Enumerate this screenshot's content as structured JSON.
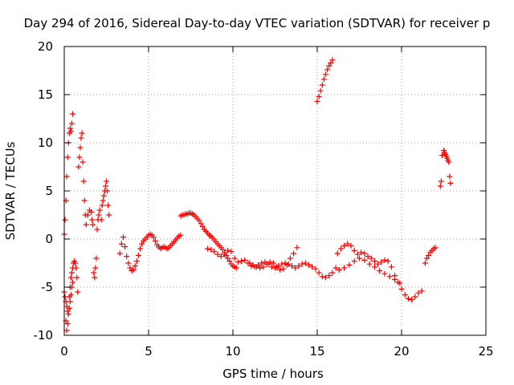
{
  "chart_data": {
    "type": "scatter",
    "title": "Day 294 of 2016, Sidereal Day-to-day VTEC variation (SDTVAR) for receiver p",
    "xlabel": "GPS time / hours",
    "ylabel": "SDTVAR / TECUs",
    "xlim": [
      0,
      25
    ],
    "ylim": [
      -10,
      20
    ],
    "xticks": [
      0,
      5,
      10,
      15,
      20,
      25
    ],
    "yticks": [
      -10,
      -5,
      0,
      5,
      10,
      15,
      20
    ],
    "grid": true,
    "marker": "+",
    "color": "#ff0000",
    "series": [
      {
        "x": [
          0.0,
          0.05,
          0.1,
          0.15,
          0.2,
          0.25,
          0.3,
          0.35,
          0.4,
          0.45,
          0.5,
          0.0,
          0.05,
          0.1,
          0.15,
          0.2,
          0.25,
          0.3,
          0.35,
          0.4,
          0.45,
          0.5,
          0.1,
          0.15,
          0.2,
          0.3,
          0.35,
          0.4,
          0.45,
          0.5,
          0.55,
          0.6,
          0.65,
          0.7,
          0.75,
          0.8,
          0.85,
          0.9,
          0.95,
          1.0,
          1.05,
          1.1,
          1.15,
          1.2,
          1.25,
          1.3,
          1.4,
          1.5,
          1.6,
          1.65,
          1.7,
          1.75,
          1.8,
          1.85,
          1.9,
          1.95,
          2.0,
          2.05,
          2.1,
          2.2,
          2.25,
          2.3,
          2.35,
          2.4,
          2.45,
          2.5,
          2.55,
          2.6,
          2.65
        ],
        "y": [
          -5.5,
          -6.0,
          -6.5,
          -7.0,
          -7.5,
          -7.8,
          -7.2,
          -6.5,
          -5.8,
          -5.0,
          -4.5,
          0.5,
          2.0,
          4.0,
          6.5,
          8.5,
          10.0,
          11.0,
          11.5,
          11.2,
          12.0,
          13.0,
          -8.5,
          -9.5,
          -8.8,
          -6.0,
          -5.0,
          -4.0,
          -3.5,
          -3.0,
          -2.5,
          -2.3,
          -2.5,
          -3.0,
          -4.0,
          -5.5,
          7.5,
          8.5,
          9.5,
          10.5,
          11.0,
          8.0,
          6.0,
          4.0,
          2.5,
          1.5,
          2.5,
          3.0,
          2.8,
          2.0,
          1.5,
          -3.5,
          -4.0,
          -3.0,
          -2.0,
          1.0,
          2.0,
          2.5,
          3.0,
          2.0,
          3.5,
          4.0,
          4.5,
          5.0,
          5.5,
          6.0,
          5.0,
          3.5,
          2.5
        ]
      },
      {
        "x": [
          3.3,
          3.4,
          3.5,
          3.6,
          3.7,
          3.8,
          3.9,
          4.0,
          4.1,
          4.2,
          4.3,
          4.4,
          4.5,
          4.6,
          4.7,
          4.8,
          4.9,
          5.0,
          5.1,
          5.2,
          5.3,
          5.4,
          5.5,
          5.6,
          5.7,
          5.8,
          5.9,
          6.0,
          6.1,
          6.2,
          6.3,
          6.4,
          6.5,
          6.6,
          6.7,
          6.8,
          6.9
        ],
        "y": [
          -1.5,
          -0.5,
          0.2,
          -0.8,
          -1.8,
          -2.5,
          -3.0,
          -3.3,
          -3.2,
          -2.8,
          -2.3,
          -1.7,
          -1.0,
          -0.5,
          -0.2,
          0.0,
          0.2,
          0.4,
          0.5,
          0.4,
          0.2,
          -0.2,
          -0.6,
          -0.8,
          -1.0,
          -0.9,
          -0.8,
          -0.9,
          -1.0,
          -0.9,
          -0.7,
          -0.5,
          -0.3,
          -0.1,
          0.1,
          0.3,
          0.4
        ]
      },
      {
        "x": [
          6.9,
          7.0,
          7.1,
          7.2,
          7.3,
          7.4,
          7.5,
          7.6,
          7.7,
          7.8,
          7.9,
          8.0,
          8.1,
          8.2,
          8.3,
          8.4,
          8.5,
          8.6,
          8.7,
          8.8,
          8.9,
          9.0,
          9.1,
          9.2,
          9.3,
          9.4,
          9.5,
          9.6,
          9.7,
          9.8,
          9.9,
          10.0,
          10.1,
          10.2
        ],
        "y": [
          2.4,
          2.5,
          2.5,
          2.6,
          2.6,
          2.7,
          2.7,
          2.6,
          2.5,
          2.3,
          2.1,
          1.9,
          1.6,
          1.3,
          1.0,
          0.8,
          0.6,
          0.4,
          0.3,
          0.1,
          -0.1,
          -0.3,
          -0.5,
          -0.7,
          -0.9,
          -1.1,
          -1.4,
          -1.7,
          -2.0,
          -2.3,
          -2.6,
          -2.8,
          -2.9,
          -3.0
        ]
      },
      {
        "x": [
          8.5,
          8.7,
          8.9,
          9.1,
          9.3,
          9.5,
          9.7,
          9.9,
          10.1,
          10.3,
          10.5,
          10.7,
          10.9,
          11.1,
          11.3,
          11.5,
          11.7,
          11.9,
          12.1,
          12.3,
          12.5,
          12.7,
          12.9,
          13.1,
          13.3,
          13.5,
          13.7,
          13.9,
          14.1,
          14.3,
          14.5,
          14.7,
          14.9,
          15.1,
          15.3,
          15.5,
          15.7,
          15.9,
          16.1
        ],
        "y": [
          -1.0,
          -1.1,
          -1.3,
          -1.6,
          -1.8,
          -1.6,
          -1.2,
          -1.3,
          -2.0,
          -2.4,
          -2.3,
          -2.2,
          -2.5,
          -2.8,
          -2.9,
          -2.7,
          -2.5,
          -2.4,
          -2.6,
          -2.9,
          -3.0,
          -2.8,
          -2.6,
          -2.5,
          -2.6,
          -2.8,
          -3.0,
          -2.8,
          -2.6,
          -2.5,
          -2.7,
          -2.9,
          -3.1,
          -3.5,
          -3.9,
          -4.0,
          -3.8,
          -3.5,
          -3.0
        ]
      },
      {
        "x": [
          11.0,
          11.2,
          11.4,
          11.6,
          11.8,
          12.0,
          12.2,
          12.4,
          12.6,
          12.8,
          13.0,
          13.2,
          13.4,
          13.6,
          13.8
        ],
        "y": [
          -2.5,
          -2.7,
          -2.9,
          -3.0,
          -2.9,
          -2.6,
          -2.4,
          -2.5,
          -2.9,
          -3.2,
          -3.1,
          -2.7,
          -2.0,
          -1.5,
          -0.9
        ]
      },
      {
        "x": [
          15.0,
          15.1,
          15.2,
          15.3,
          15.4,
          15.5,
          15.6,
          15.7,
          15.8,
          15.9
        ],
        "y": [
          14.3,
          14.8,
          15.4,
          16.0,
          16.6,
          17.1,
          17.6,
          18.0,
          18.3,
          18.6
        ]
      },
      {
        "x": [
          16.2,
          16.4,
          16.6,
          16.8,
          17.0,
          17.2,
          17.4,
          17.6,
          17.8,
          18.0,
          18.2,
          18.4,
          18.6,
          18.8,
          19.0,
          19.2,
          19.4,
          19.6,
          19.8,
          20.0,
          20.2,
          20.4,
          20.6,
          20.8,
          21.0,
          21.2
        ],
        "y": [
          -1.5,
          -1.0,
          -0.7,
          -0.5,
          -0.7,
          -1.2,
          -1.6,
          -1.4,
          -1.5,
          -1.8,
          -2.0,
          -2.3,
          -2.6,
          -2.4,
          -2.2,
          -2.3,
          -2.9,
          -3.8,
          -4.5,
          -5.2,
          -5.8,
          -6.2,
          -6.3,
          -6.0,
          -5.6,
          -5.4
        ]
      },
      {
        "x": [
          16.3,
          16.6,
          16.9,
          17.2,
          17.5,
          17.8,
          18.1,
          18.4,
          18.7,
          19.0,
          19.3,
          19.6,
          19.9
        ],
        "y": [
          -3.2,
          -3.0,
          -2.7,
          -2.3,
          -2.0,
          -2.2,
          -2.6,
          -2.9,
          -3.3,
          -3.6,
          -3.9,
          -4.2,
          -4.6
        ]
      },
      {
        "x": [
          21.4,
          21.5,
          21.6,
          21.7,
          21.8,
          21.9,
          22.0
        ],
        "y": [
          -2.5,
          -2.0,
          -1.7,
          -1.4,
          -1.2,
          -1.0,
          -0.9
        ]
      },
      {
        "x": [
          22.3,
          22.35,
          22.4,
          22.5,
          22.55,
          22.6,
          22.65,
          22.7,
          22.75,
          22.8,
          22.85,
          22.9
        ],
        "y": [
          5.5,
          6.0,
          8.7,
          9.2,
          9.0,
          8.8,
          8.6,
          8.4,
          8.2,
          8.0,
          6.5,
          5.8
        ]
      }
    ]
  }
}
